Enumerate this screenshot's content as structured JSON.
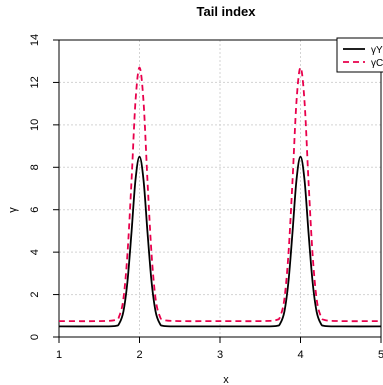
{
  "chart_data": {
    "type": "line",
    "title": "Tail index",
    "xlabel": "x",
    "ylabel": "γ",
    "xlim": [
      1,
      5
    ],
    "ylim": [
      0,
      14
    ],
    "xticks": [
      1,
      2,
      3,
      4,
      5
    ],
    "yticks": [
      0,
      2,
      4,
      6,
      8,
      10,
      12,
      14
    ],
    "grid": true,
    "legend_position": "top-right",
    "series": [
      {
        "name": "γY",
        "color": "#000000",
        "dash": "solid",
        "x": [
          1.0,
          1.5,
          1.7,
          1.75,
          1.8,
          1.85,
          1.9,
          1.95,
          2.0,
          2.05,
          2.1,
          2.15,
          2.2,
          2.25,
          2.3,
          2.5,
          3.0,
          3.5,
          3.7,
          3.75,
          3.8,
          3.85,
          3.9,
          3.95,
          4.0,
          4.05,
          4.1,
          4.15,
          4.2,
          4.25,
          4.3,
          4.5,
          5.0
        ],
        "y": [
          0.5,
          0.5,
          0.52,
          0.65,
          1.2,
          2.6,
          4.9,
          7.4,
          8.5,
          7.4,
          4.9,
          2.6,
          1.2,
          0.65,
          0.52,
          0.5,
          0.5,
          0.5,
          0.52,
          0.65,
          1.2,
          2.6,
          4.9,
          7.4,
          8.5,
          7.4,
          4.9,
          2.6,
          1.2,
          0.65,
          0.52,
          0.5,
          0.5
        ]
      },
      {
        "name": "γC",
        "color": "#e8004c",
        "dash": "dashed",
        "x": [
          1.0,
          1.5,
          1.7,
          1.75,
          1.8,
          1.85,
          1.9,
          1.95,
          2.0,
          2.05,
          2.1,
          2.15,
          2.2,
          2.25,
          2.3,
          2.5,
          3.0,
          3.5,
          3.7,
          3.75,
          3.8,
          3.85,
          3.9,
          3.95,
          4.0,
          4.05,
          4.1,
          4.15,
          4.2,
          4.25,
          4.3,
          4.5,
          5.0
        ],
        "y": [
          0.75,
          0.75,
          0.8,
          1.0,
          1.8,
          3.9,
          7.3,
          11.1,
          12.7,
          11.1,
          7.3,
          3.9,
          1.8,
          1.0,
          0.8,
          0.75,
          0.75,
          0.75,
          0.8,
          1.0,
          1.8,
          3.9,
          7.3,
          11.1,
          12.7,
          11.1,
          7.3,
          3.9,
          1.8,
          1.0,
          0.8,
          0.75,
          0.75
        ]
      }
    ]
  }
}
